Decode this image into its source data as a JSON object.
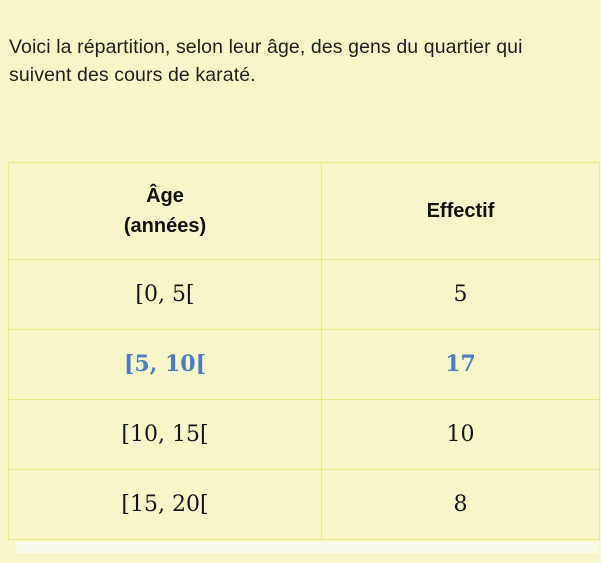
{
  "page": {
    "intro": "Voici la répartition, selon leur âge, des gens du quartier qui suivent des cours de karaté."
  },
  "table": {
    "header": {
      "age_line1": "Âge",
      "age_line2": "(années)",
      "effectif": "Effectif"
    },
    "rows": [
      {
        "age": "[0, 5[",
        "effectif": "5"
      },
      {
        "age": "[5, 10[",
        "effectif": "17"
      },
      {
        "age": "[10, 15[",
        "effectif": "10"
      },
      {
        "age": "[15, 20[",
        "effectif": "8"
      }
    ],
    "highlighted_row_index": 1
  },
  "chart_data": {
    "type": "table",
    "columns": [
      "Âge (années)",
      "Effectif"
    ],
    "categories": [
      "[0, 5[",
      "[5, 10[",
      "[10, 15[",
      "[15, 20["
    ],
    "values": [
      5,
      17,
      10,
      8
    ],
    "highlighted_category": "[5, 10["
  },
  "colors": {
    "background": "#f8f6c9",
    "table_border": "#e5eb82",
    "highlight_text": "#4a7dc3",
    "body_text": "#1f1f1f",
    "scrollbar_track": "#faf9ee"
  }
}
